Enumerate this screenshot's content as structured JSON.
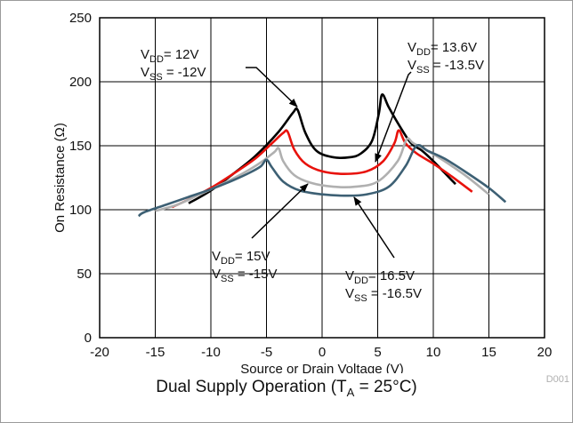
{
  "chart_data": {
    "type": "line",
    "xlabel": "Source or Drain Voltage (V)",
    "ylabel": "On Resistance (Ω)",
    "xlim": [
      -20,
      20
    ],
    "ylim": [
      0,
      250
    ],
    "xticks": [
      "-20",
      "-15",
      "-10",
      "-5",
      "0",
      "5",
      "10",
      "15",
      "20"
    ],
    "yticks": [
      "0",
      "50",
      "100",
      "150",
      "200",
      "250"
    ],
    "grid": true,
    "series": [
      {
        "color": "#000000",
        "x": [
          -12,
          -10,
          -8,
          -6,
          -4,
          -2.6,
          -2.2,
          -1.5,
          -0.5,
          1,
          2.5,
          3.5,
          4.5,
          5.1,
          5.4,
          6,
          7,
          8,
          9,
          10,
          11,
          12
        ],
        "y": [
          105,
          115,
          128,
          142,
          160,
          176,
          178,
          160,
          146,
          141,
          141,
          144,
          154,
          175,
          190,
          180,
          165,
          152,
          146,
          138,
          129,
          120
        ]
      },
      {
        "color": "#e8120c",
        "x": [
          -13.5,
          -12,
          -10,
          -8,
          -6,
          -4.5,
          -3.5,
          -3.1,
          -2.5,
          -1.5,
          0,
          2,
          4,
          5.5,
          6.5,
          6.9,
          7.5,
          8.5,
          10,
          11.5,
          13.5
        ],
        "y": [
          102,
          108,
          117,
          128,
          140,
          152,
          160,
          161,
          147,
          136,
          130,
          128,
          130,
          138,
          152,
          162,
          152,
          144,
          136,
          127,
          114
        ]
      },
      {
        "color": "#b0b0b0",
        "x": [
          -15,
          -13,
          -11,
          -9,
          -7,
          -5.5,
          -4.3,
          -3.9,
          -3.5,
          -2.5,
          -1,
          1,
          3,
          5,
          6.8,
          7.6,
          8.2,
          9.5,
          11,
          13,
          15
        ],
        "y": [
          99,
          104,
          112,
          120,
          129,
          137,
          145,
          148,
          138,
          127,
          121,
          118,
          118,
          122,
          138,
          155,
          152,
          146,
          138,
          126,
          112
        ]
      },
      {
        "color": "#3d6074",
        "x": [
          -16.5,
          -16,
          -14,
          -12,
          -10,
          -8,
          -6.5,
          -5.5,
          -5,
          -4.5,
          -3.5,
          -2,
          0,
          2,
          4,
          6,
          7.5,
          8.5,
          9.5,
          11,
          13,
          15,
          16.5
        ],
        "y": [
          95,
          98,
          104,
          110,
          116,
          123,
          129,
          134,
          139,
          133,
          122,
          115,
          112,
          111,
          112,
          118,
          134,
          150,
          146,
          140,
          129,
          117,
          106
        ]
      }
    ],
    "annotations": [
      {
        "vdd_sub": "DD",
        "vdd_value": "= 12V",
        "vss_sub": "SS",
        "vss_value": " = -12V"
      },
      {
        "vdd_sub": "DD",
        "vdd_value": "= 13.6V",
        "vss_sub": "SS",
        "vss_value": " = -13.5V"
      },
      {
        "vdd_sub": "DD",
        "vdd_value": "= 15V",
        "vss_sub": "SS",
        "vss_value": " = -15V"
      },
      {
        "vdd_sub": "DD",
        "vdd_value": "= 16.5V",
        "vss_sub": "SS",
        "vss_value": " = -16.5V"
      }
    ]
  },
  "caption": {
    "prefix": "Dual Supply Operation (T",
    "sub": "A",
    "suffix": " = 25°C)"
  },
  "figure_code": "D001"
}
